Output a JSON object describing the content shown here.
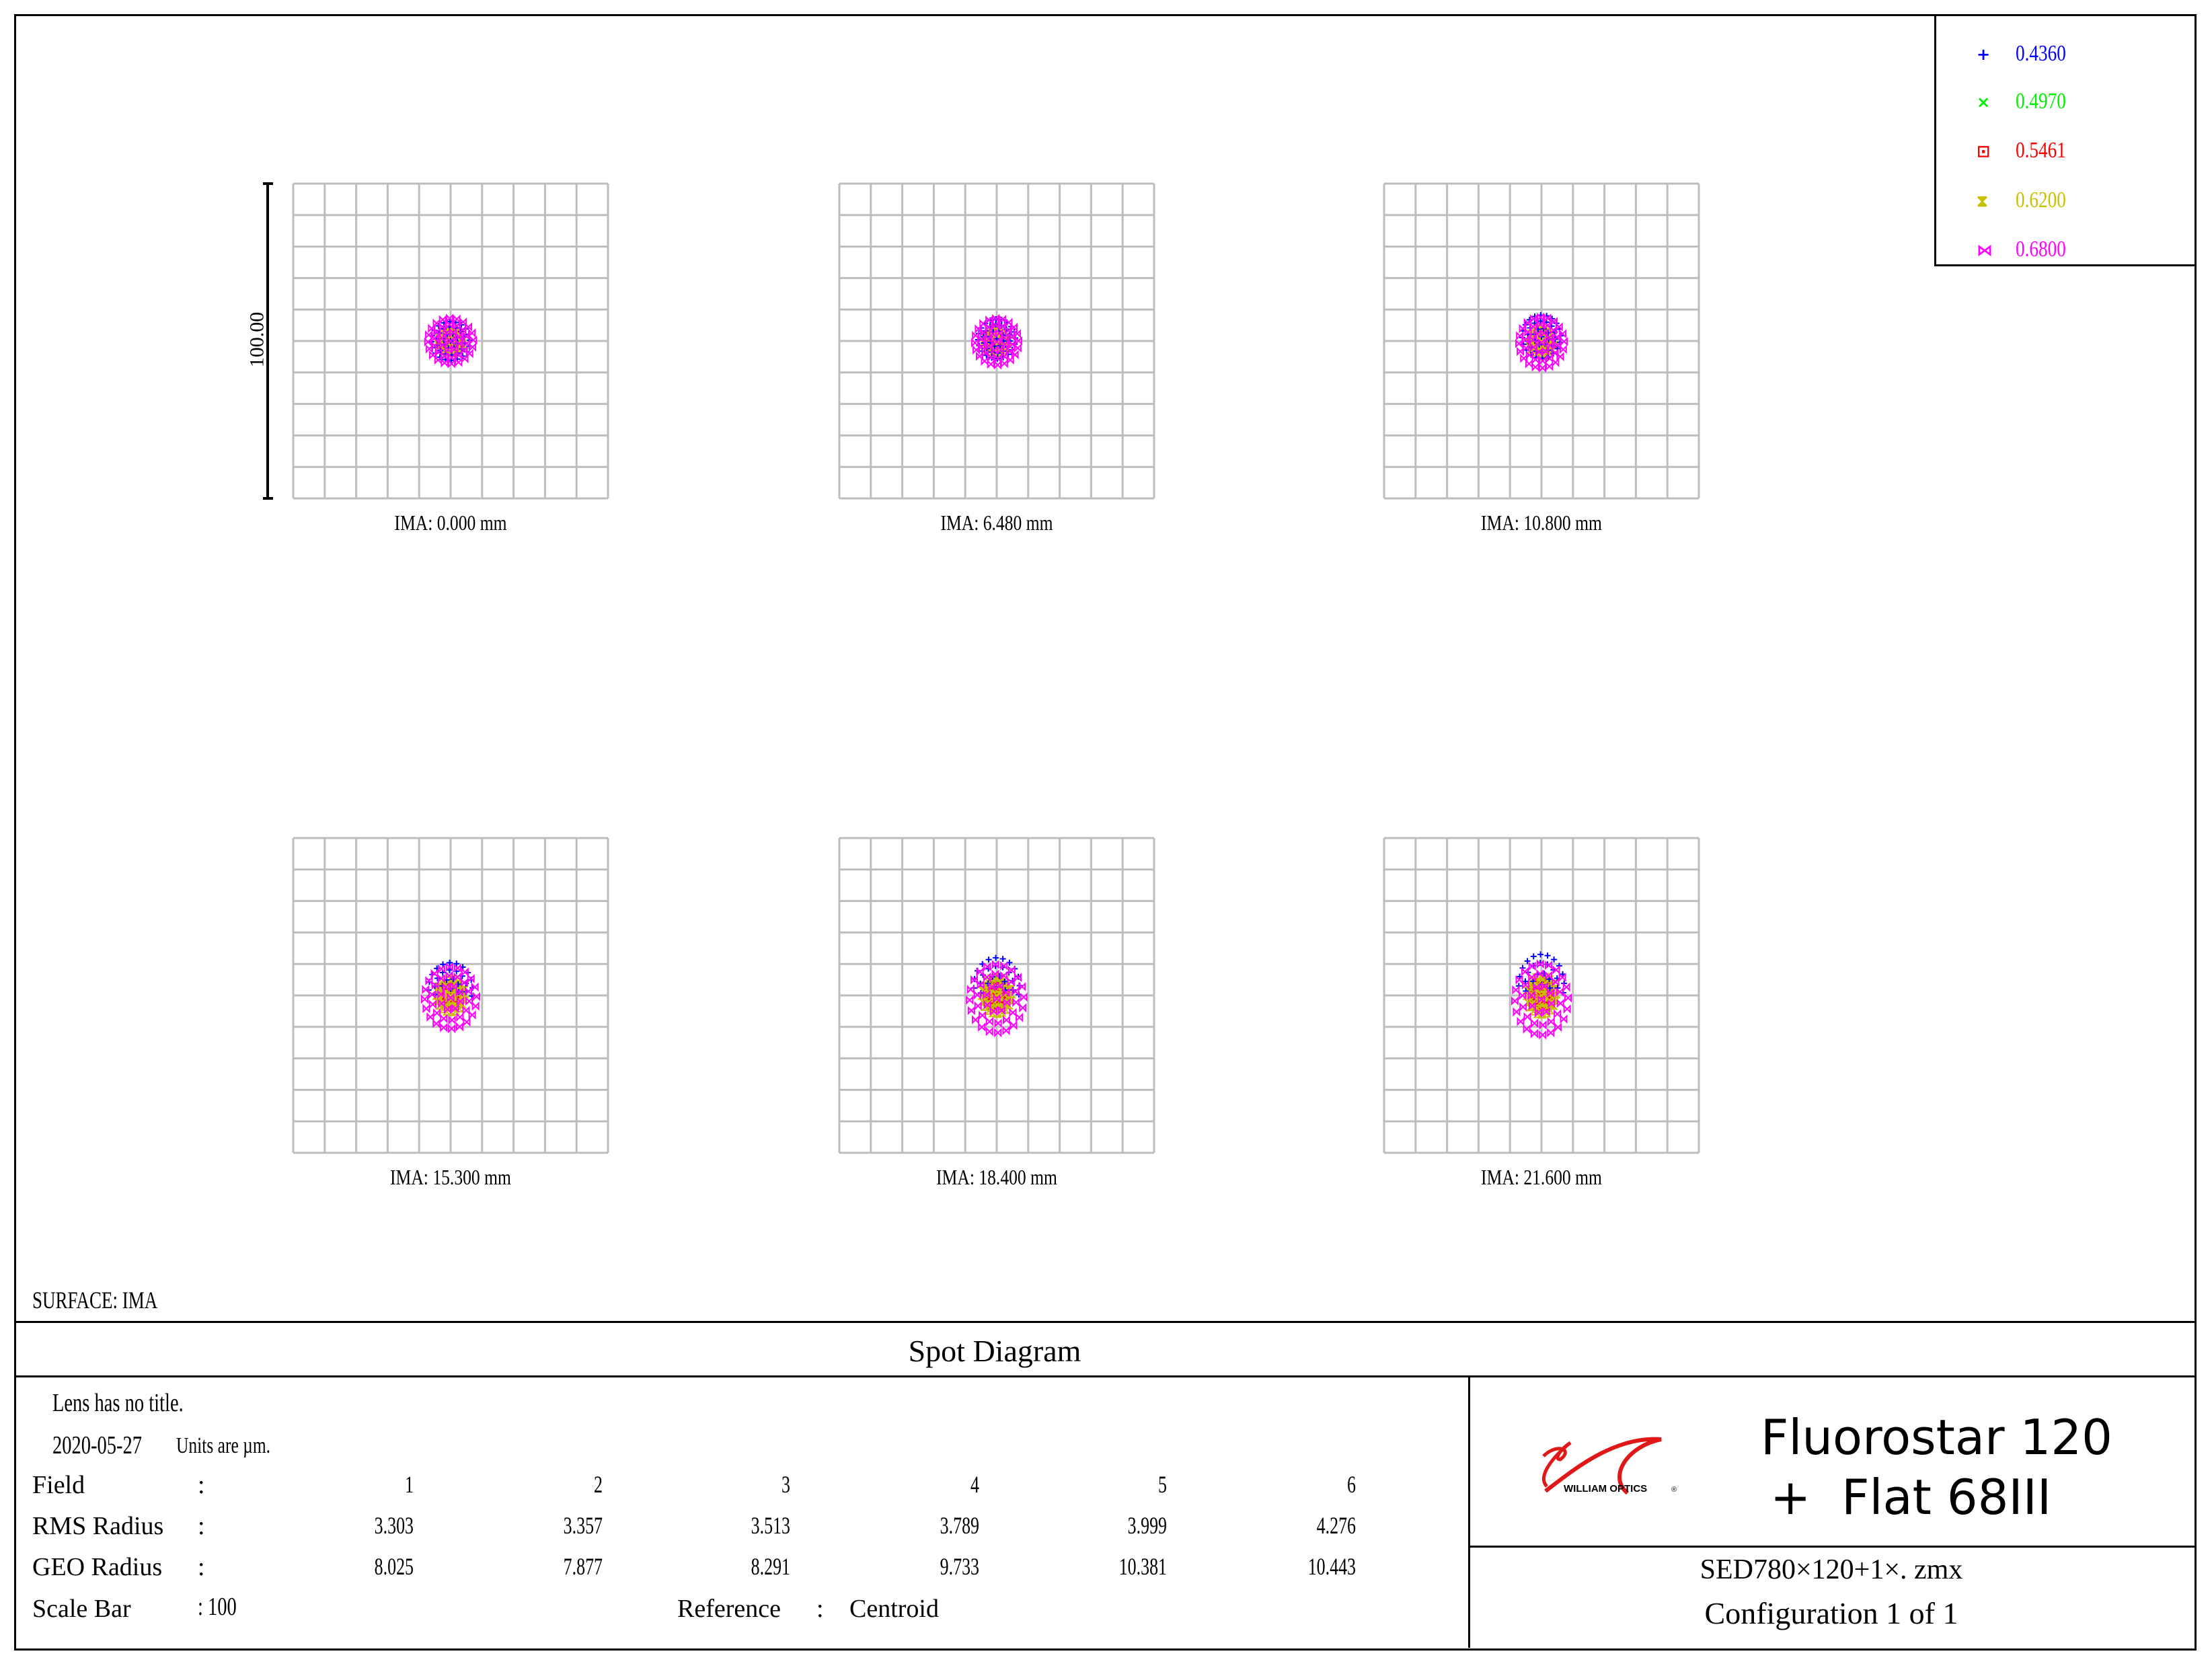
{
  "chart_data": {
    "type": "scatter",
    "title": "Spot Diagram",
    "surface": "SURFACE: IMA",
    "scale_bar_label": "100.00",
    "scale_um": 100,
    "grid": true,
    "legend_placement": "top-right",
    "wavelengths": [
      {
        "label": "0.4360",
        "color": "#0000ff",
        "symbol": "plus"
      },
      {
        "label": "0.4970",
        "color": "#00ee00",
        "symbol": "x"
      },
      {
        "label": "0.5461",
        "color": "#ff0000",
        "symbol": "square"
      },
      {
        "label": "0.6200",
        "color": "#c8c000",
        "symbol": "hourglass"
      },
      {
        "label": "0.6800",
        "color": "#ff00ff",
        "symbol": "bowtie"
      }
    ],
    "fields": [
      {
        "field": "1",
        "ima": "IMA: 0.000 mm",
        "rms": "3.303",
        "geo": "8.025"
      },
      {
        "field": "2",
        "ima": "IMA: 6.480 mm",
        "rms": "3.357",
        "geo": "7.877"
      },
      {
        "field": "3",
        "ima": "IMA: 10.800 mm",
        "rms": "3.513",
        "geo": "8.291"
      },
      {
        "field": "4",
        "ima": "IMA: 15.300 mm",
        "rms": "3.789",
        "geo": "9.733"
      },
      {
        "field": "5",
        "ima": "IMA: 18.400 mm",
        "rms": "3.999",
        "geo": "10.381"
      },
      {
        "field": "6",
        "ima": "IMA: 21.600 mm",
        "rms": "4.276",
        "geo": "10.443"
      }
    ]
  },
  "info": {
    "lens_title": "Lens has no title.",
    "date": "2020-05-27",
    "units": "Units are µm.",
    "field_label": "Field",
    "rms_label": "RMS Radius",
    "geo_label": "GEO Radius",
    "scale_bar_label": "Scale Bar",
    "colon": ":",
    "scale_bar_value": ": 100",
    "reference_label": "Reference",
    "reference_value": "Centroid"
  },
  "title_block": {
    "logo_text": "WILLIAM OPTICS",
    "product_line1": "Fluorostar 120",
    "product_line2": "+  Flat 68III",
    "file_name": "SED780×120+1×. zmx",
    "configuration": "Configuration 1 of 1"
  }
}
